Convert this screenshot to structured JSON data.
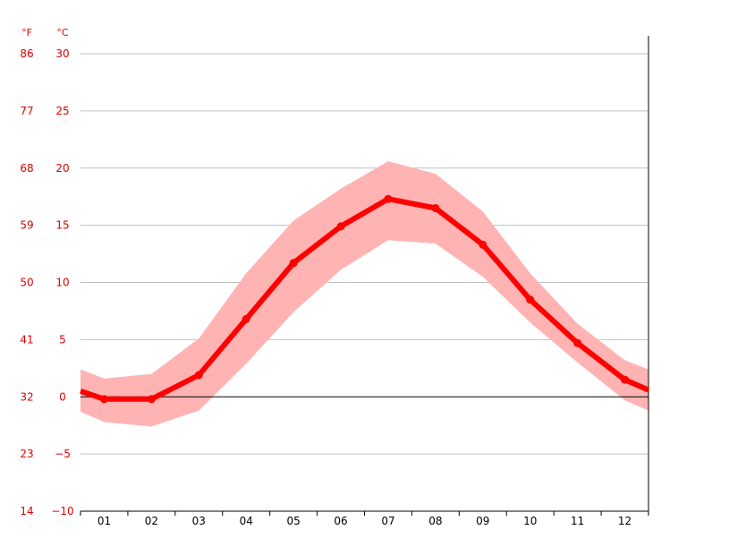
{
  "chart_data": {
    "type": "line",
    "units": {
      "fahrenheit": "°F",
      "celsius": "°C"
    },
    "x": [
      "01",
      "02",
      "03",
      "04",
      "05",
      "06",
      "07",
      "08",
      "09",
      "10",
      "11",
      "12"
    ],
    "series": [
      {
        "values": [
          -0.2,
          -0.2,
          1.9,
          6.8,
          11.7,
          14.9,
          17.3,
          16.5,
          13.3,
          8.5,
          4.7,
          1.5
        ]
      }
    ],
    "range_band": {
      "x_extended": [
        0.5,
        1,
        2,
        3,
        4,
        5,
        6,
        7,
        8,
        9,
        10,
        11,
        12,
        12.5
      ],
      "upper": [
        2.4,
        1.6,
        2.0,
        5.1,
        10.8,
        15.4,
        18.2,
        20.6,
        19.5,
        16.2,
        10.8,
        6.4,
        3.2,
        2.4
      ],
      "lower": [
        -1.3,
        -2.2,
        -2.6,
        -1.2,
        2.9,
        7.4,
        11.1,
        13.7,
        13.4,
        10.5,
        6.5,
        3.0,
        -0.3,
        -1.2
      ]
    },
    "series_edge_values": {
      "left": 0.5,
      "right": 0.6
    },
    "y_celsius_ticks": [
      "−10",
      "−5",
      "0",
      "5",
      "10",
      "15",
      "20",
      "25",
      "30"
    ],
    "y_celsius_values": [
      -10,
      -5,
      0,
      5,
      10,
      15,
      20,
      25,
      30
    ],
    "y_fahrenheit_ticks": [
      "14",
      "23",
      "32",
      "41",
      "50",
      "59",
      "68",
      "77",
      "86"
    ],
    "ylim": [
      -10,
      30
    ],
    "grid": true,
    "colors": {
      "line": "#ff0000",
      "band": "#ffb3b3",
      "grid": "#c0c0c0",
      "axis": "#000000",
      "label": "#e00000"
    }
  }
}
